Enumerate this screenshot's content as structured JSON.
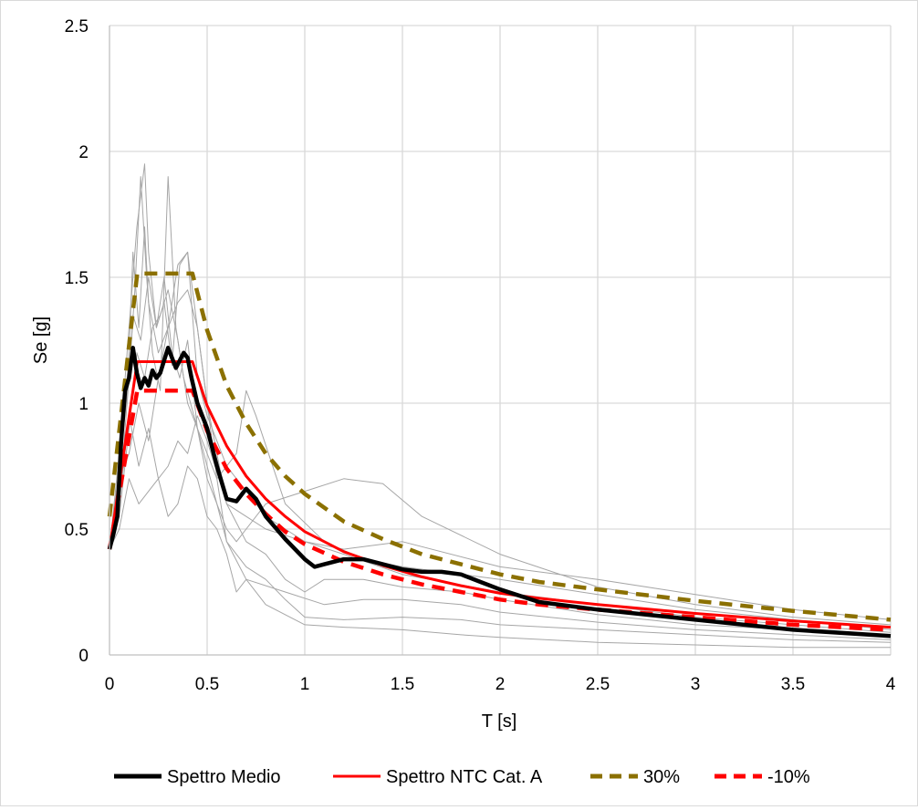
{
  "chart_data": {
    "type": "line",
    "title": "",
    "xlabel": "T [s]",
    "ylabel": "Se [g]",
    "xlim": [
      0,
      4
    ],
    "ylim": [
      0,
      2.5
    ],
    "x_ticks": [
      "0",
      "0.5",
      "1",
      "1.5",
      "2",
      "2.5",
      "3",
      "3.5",
      "4"
    ],
    "y_ticks": [
      "0",
      "0.5",
      "1",
      "1.5",
      "2",
      "2.5"
    ],
    "grid": true,
    "legend_position": "bottom",
    "series": [
      {
        "name": "Spettro Medio",
        "color": "#000000",
        "style": "solid-thick",
        "x": [
          0,
          0.02,
          0.04,
          0.06,
          0.08,
          0.1,
          0.12,
          0.14,
          0.16,
          0.18,
          0.2,
          0.22,
          0.24,
          0.26,
          0.28,
          0.3,
          0.32,
          0.34,
          0.36,
          0.38,
          0.4,
          0.42,
          0.45,
          0.5,
          0.55,
          0.6,
          0.65,
          0.7,
          0.75,
          0.8,
          0.9,
          1.0,
          1.05,
          1.1,
          1.2,
          1.3,
          1.4,
          1.5,
          1.6,
          1.7,
          1.8,
          1.9,
          2.0,
          2.2,
          2.5,
          3.0,
          3.5,
          4.0
        ],
        "values": [
          0.42,
          0.48,
          0.55,
          0.85,
          1.05,
          1.1,
          1.22,
          1.12,
          1.06,
          1.1,
          1.07,
          1.13,
          1.1,
          1.12,
          1.17,
          1.22,
          1.18,
          1.14,
          1.17,
          1.2,
          1.18,
          1.1,
          1.0,
          0.9,
          0.75,
          0.62,
          0.61,
          0.66,
          0.62,
          0.55,
          0.46,
          0.38,
          0.35,
          0.36,
          0.38,
          0.38,
          0.36,
          0.34,
          0.33,
          0.33,
          0.32,
          0.29,
          0.26,
          0.21,
          0.18,
          0.14,
          0.1,
          0.075
        ]
      },
      {
        "name": "Spettro NTC Cat. A",
        "color": "#ff0000",
        "style": "solid",
        "x": [
          0,
          0.142,
          0.425,
          0.5,
          0.6,
          0.7,
          0.8,
          0.9,
          1.0,
          1.2,
          1.4,
          1.6,
          1.8,
          2.0,
          2.2,
          2.5,
          3.0,
          3.5,
          4.0
        ],
        "values": [
          0.42,
          1.165,
          1.165,
          0.99,
          0.83,
          0.71,
          0.62,
          0.55,
          0.49,
          0.41,
          0.355,
          0.31,
          0.275,
          0.245,
          0.225,
          0.2,
          0.165,
          0.135,
          0.11
        ]
      },
      {
        "name": "30%",
        "color": "#8b7000",
        "style": "dashed",
        "x": [
          0,
          0.142,
          0.425,
          0.5,
          0.6,
          0.7,
          0.8,
          0.9,
          1.0,
          1.2,
          1.4,
          1.6,
          1.8,
          2.0,
          2.2,
          2.5,
          3.0,
          3.5,
          4.0
        ],
        "values": [
          0.55,
          1.515,
          1.515,
          1.29,
          1.07,
          0.92,
          0.8,
          0.71,
          0.64,
          0.53,
          0.46,
          0.4,
          0.36,
          0.32,
          0.29,
          0.26,
          0.215,
          0.175,
          0.14
        ]
      },
      {
        "name": "-10%",
        "color": "#ff0000",
        "style": "dashed",
        "x": [
          0,
          0.142,
          0.425,
          0.5,
          0.6,
          0.7,
          0.8,
          0.9,
          1.0,
          1.2,
          1.4,
          1.6,
          1.8,
          2.0,
          2.2,
          2.5,
          3.0,
          3.5,
          4.0
        ],
        "values": [
          0.42,
          1.05,
          1.05,
          0.89,
          0.74,
          0.64,
          0.56,
          0.49,
          0.44,
          0.37,
          0.32,
          0.28,
          0.25,
          0.22,
          0.2,
          0.18,
          0.15,
          0.12,
          0.1
        ]
      }
    ],
    "background_series_color": "#a6a6a6",
    "background_series": [
      {
        "x": [
          0,
          0.05,
          0.1,
          0.12,
          0.15,
          0.18,
          0.2,
          0.25,
          0.3,
          0.35,
          0.4,
          0.5,
          0.6,
          0.7,
          0.8,
          1.0,
          1.2,
          1.5,
          2.0,
          2.5,
          3.0,
          3.5,
          4.0
        ],
        "values": [
          0.42,
          0.7,
          1.2,
          1.6,
          1.3,
          1.7,
          1.4,
          1.2,
          1.3,
          1.55,
          1.6,
          1.0,
          0.6,
          0.55,
          0.5,
          0.45,
          0.4,
          0.32,
          0.25,
          0.2,
          0.15,
          0.12,
          0.09
        ]
      },
      {
        "x": [
          0,
          0.05,
          0.1,
          0.13,
          0.16,
          0.19,
          0.22,
          0.26,
          0.3,
          0.34,
          0.38,
          0.45,
          0.55,
          0.65,
          0.7,
          0.75,
          0.9,
          1.1,
          1.3,
          1.5,
          2.0,
          2.5,
          3.0,
          3.5,
          4.0
        ],
        "values": [
          0.42,
          0.6,
          1.1,
          1.45,
          1.9,
          1.5,
          1.2,
          1.05,
          1.9,
          1.3,
          1.1,
          0.9,
          0.7,
          0.8,
          1.05,
          0.95,
          0.6,
          0.45,
          0.38,
          0.35,
          0.3,
          0.24,
          0.18,
          0.14,
          0.1
        ]
      },
      {
        "x": [
          0,
          0.05,
          0.1,
          0.14,
          0.18,
          0.2,
          0.24,
          0.28,
          0.32,
          0.36,
          0.4,
          0.45,
          0.5,
          0.6,
          0.7,
          0.9,
          1.1,
          1.3,
          1.5,
          1.8,
          2.0,
          2.5,
          3.0,
          3.5,
          4.0
        ],
        "values": [
          0.42,
          0.8,
          1.3,
          1.7,
          1.95,
          1.6,
          1.3,
          1.5,
          1.2,
          1.1,
          1.25,
          0.9,
          0.75,
          0.45,
          0.3,
          0.25,
          0.2,
          0.22,
          0.22,
          0.2,
          0.17,
          0.13,
          0.1,
          0.08,
          0.06
        ]
      },
      {
        "x": [
          0,
          0.05,
          0.1,
          0.14,
          0.18,
          0.22,
          0.26,
          0.3,
          0.35,
          0.4,
          0.45,
          0.5,
          0.6,
          0.65,
          0.7,
          0.8,
          1.0,
          1.2,
          1.4,
          1.6,
          2.0,
          2.5,
          3.0,
          3.5,
          4.0
        ],
        "values": [
          0.42,
          0.55,
          0.9,
          1.2,
          1.1,
          1.3,
          1.35,
          1.45,
          1.25,
          1.0,
          0.9,
          0.7,
          0.5,
          0.45,
          0.5,
          0.6,
          0.65,
          0.7,
          0.68,
          0.55,
          0.4,
          0.27,
          0.2,
          0.15,
          0.12
        ]
      },
      {
        "x": [
          0,
          0.05,
          0.1,
          0.15,
          0.2,
          0.25,
          0.3,
          0.35,
          0.4,
          0.45,
          0.5,
          0.55,
          0.6,
          0.7,
          0.8,
          0.9,
          1.0,
          1.2,
          1.5,
          1.8,
          2.0,
          2.5,
          3.0,
          3.5,
          4.0
        ],
        "values": [
          0.42,
          0.7,
          0.8,
          1.0,
          0.85,
          1.1,
          1.3,
          1.4,
          1.45,
          1.3,
          1.0,
          0.7,
          0.45,
          0.35,
          0.3,
          0.22,
          0.15,
          0.14,
          0.15,
          0.14,
          0.12,
          0.1,
          0.08,
          0.06,
          0.05
        ]
      },
      {
        "x": [
          0,
          0.05,
          0.1,
          0.15,
          0.2,
          0.25,
          0.3,
          0.35,
          0.4,
          0.45,
          0.5,
          0.6,
          0.7,
          0.8,
          0.9,
          1.0,
          1.1,
          1.3,
          1.5,
          1.8,
          2.0,
          2.5,
          3.0,
          3.5,
          4.0
        ],
        "values": [
          0.42,
          0.6,
          0.95,
          0.75,
          0.9,
          0.7,
          0.75,
          0.85,
          0.8,
          0.95,
          0.85,
          0.6,
          0.45,
          0.4,
          0.3,
          0.25,
          0.3,
          0.3,
          0.27,
          0.25,
          0.22,
          0.16,
          0.12,
          0.1,
          0.08
        ]
      },
      {
        "x": [
          0,
          0.05,
          0.1,
          0.15,
          0.2,
          0.25,
          0.3,
          0.35,
          0.4,
          0.45,
          0.5,
          0.55,
          0.6,
          0.65,
          0.7,
          0.8,
          1.0,
          1.2,
          1.5,
          1.8,
          2.0,
          2.5,
          3.0,
          3.5,
          4.0
        ],
        "values": [
          0.42,
          0.5,
          0.7,
          0.6,
          0.65,
          0.7,
          0.55,
          0.6,
          0.75,
          0.7,
          0.55,
          0.5,
          0.4,
          0.25,
          0.3,
          0.2,
          0.12,
          0.11,
          0.1,
          0.08,
          0.07,
          0.05,
          0.04,
          0.03,
          0.03
        ]
      },
      {
        "x": [
          0,
          0.05,
          0.1,
          0.12,
          0.16,
          0.2,
          0.24,
          0.28,
          0.32,
          0.36,
          0.4,
          0.45,
          0.5,
          0.6,
          0.7,
          0.8,
          0.9,
          1.0,
          1.2,
          1.5,
          2.0,
          2.5,
          3.0,
          3.5,
          4.0
        ],
        "values": [
          0.42,
          0.75,
          1.1,
          1.35,
          1.25,
          1.5,
          1.3,
          1.4,
          1.15,
          1.55,
          1.6,
          1.1,
          0.95,
          0.75,
          0.65,
          0.55,
          0.5,
          0.45,
          0.42,
          0.45,
          0.35,
          0.3,
          0.24,
          0.18,
          0.14
        ]
      }
    ]
  }
}
